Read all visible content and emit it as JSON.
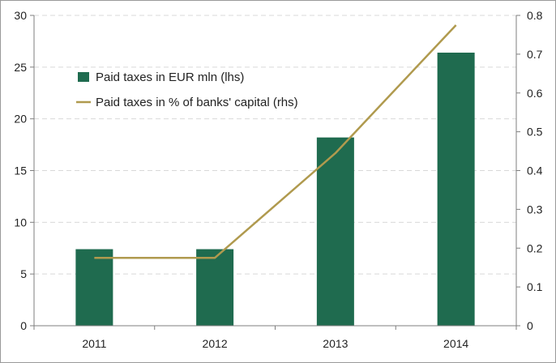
{
  "chart_data": {
    "type": "bar",
    "categories": [
      "2011",
      "2012",
      "2013",
      "2014"
    ],
    "series": [
      {
        "name": "Paid taxes in EUR mln (lhs)",
        "type": "bar",
        "axis": "left",
        "values": [
          7.4,
          7.4,
          18.2,
          26.4
        ],
        "color": "#1f6b4f"
      },
      {
        "name": "Paid taxes in % of banks' capital (rhs)",
        "type": "line",
        "axis": "right",
        "values": [
          0.175,
          0.175,
          0.445,
          0.775
        ],
        "color": "#b09a4e"
      }
    ],
    "ylim_left": [
      0,
      30
    ],
    "yticks_left": [
      "0",
      "5",
      "10",
      "15",
      "20",
      "25",
      "30"
    ],
    "ylim_right": [
      0,
      0.8
    ],
    "yticks_right": [
      "0",
      "0.1",
      "0.2",
      "0.3",
      "0.4",
      "0.5",
      "0.6",
      "0.7",
      "0.8"
    ],
    "grid": true,
    "legend_position": "top-left",
    "title": "",
    "xlabel": "",
    "ylabel": ""
  }
}
